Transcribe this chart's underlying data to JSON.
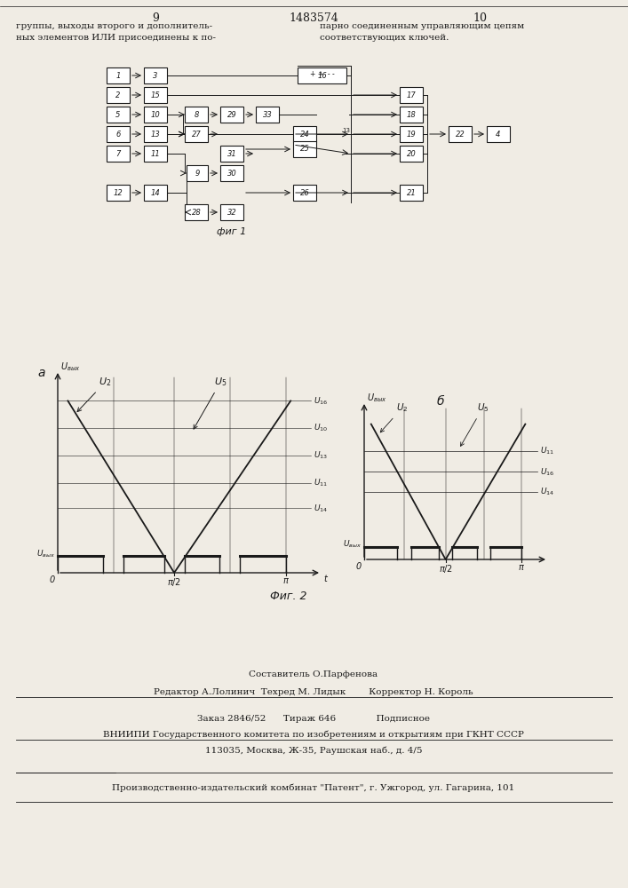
{
  "bg_color": "#f0ece4",
  "page_left_num": "9",
  "page_center_num": "1483574",
  "page_right_num": "10",
  "header_text_left": "группы, выходы второго и дополнитель-\nных элементов ИЛИ присоединены к по-",
  "header_text_right": "парно соединенным управляющим цепям\nсоответствующих ключей.",
  "fig1_caption": "фиг 1",
  "fig2_caption": "Фиг. 2",
  "footer_line1": "Составитель О.Парфенова",
  "footer_line2": "Редактор А.Лолинич  Техред М. Лидык        Корректор Н. Король",
  "footer_line3": "Заказ 2846/52      Тираж 646              Подписное",
  "footer_line4": "ВНИИПИ Государственного комитета по изобретениям и открытиям при ГКНТ СССР",
  "footer_line5": "113035, Москва, Ж-35, Раушская наб., д. 4/5",
  "footer_line6": "Производственно-издательский комбинат \"Патент\", г. Ужгород, ул. Гагарина, 101"
}
